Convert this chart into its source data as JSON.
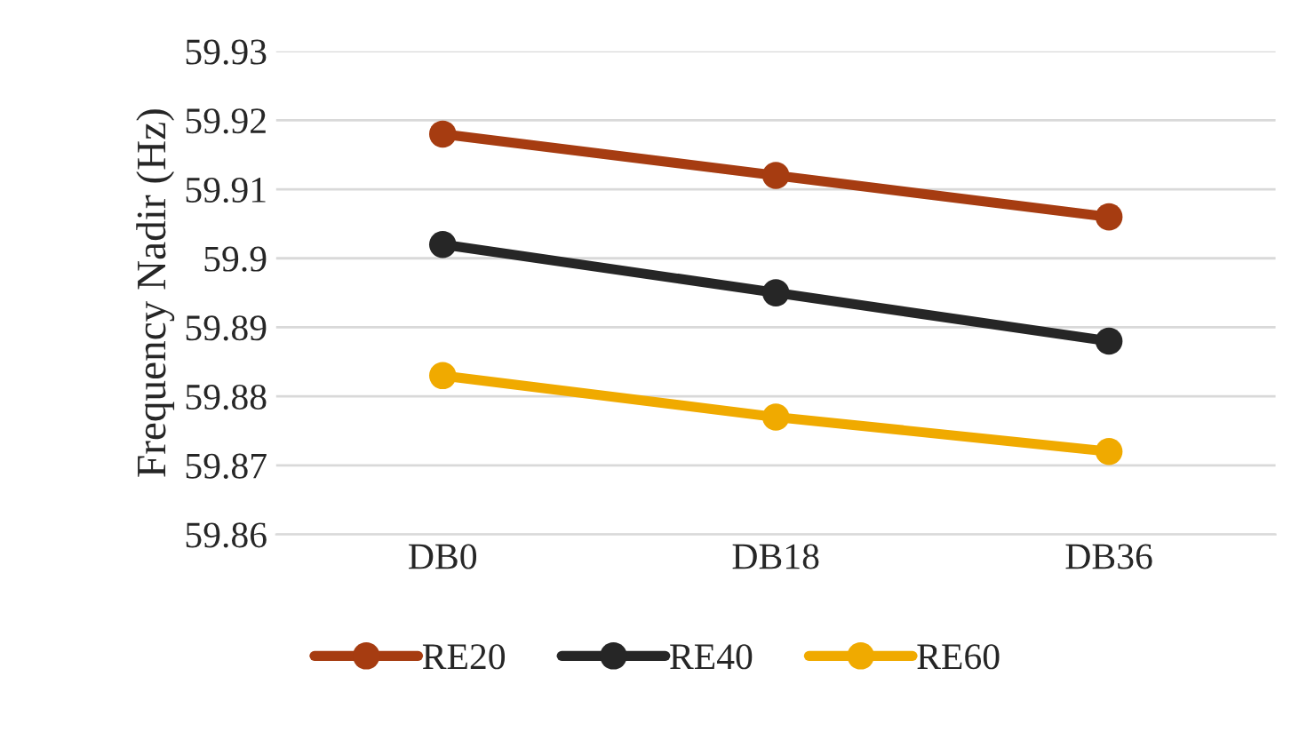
{
  "chart_data": {
    "type": "line",
    "ylabel": "Frequency Nadir (Hz)",
    "categories": [
      "DB0",
      "DB18",
      "DB36"
    ],
    "series": [
      {
        "name": "RE20",
        "color": "#a63c11",
        "values": [
          59.918,
          59.912,
          59.906
        ]
      },
      {
        "name": "RE40",
        "color": "#262626",
        "values": [
          59.902,
          59.895,
          59.888
        ]
      },
      {
        "name": "RE60",
        "color": "#f0aa00",
        "values": [
          59.883,
          59.877,
          59.872
        ]
      }
    ],
    "ylim": [
      59.86,
      59.93
    ],
    "yticks": [
      59.86,
      59.87,
      59.88,
      59.89,
      59.9,
      59.91,
      59.92,
      59.93
    ],
    "grid": "y",
    "legend": "bottom",
    "marker": "circle",
    "line_style": "solid"
  }
}
